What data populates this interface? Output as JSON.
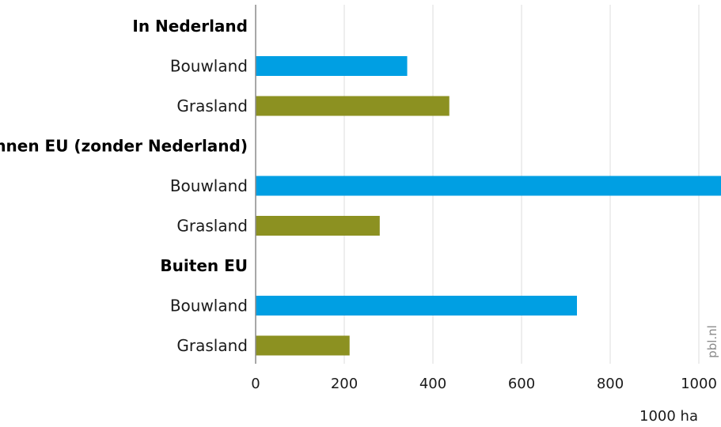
{
  "chart_data": {
    "type": "bar",
    "orientation": "horizontal",
    "x_unit_label": "1000 ha",
    "xlim": [
      0,
      1050
    ],
    "x_ticks": [
      "0",
      "200",
      "400",
      "600",
      "800",
      "1000"
    ],
    "grid": true,
    "source_label": "pbl.nl",
    "colors": {
      "Bouwland": "#009fe3",
      "Grasland": "#8c9121"
    },
    "groups": [
      {
        "name": "In Nederland",
        "bars": [
          {
            "label": "Bouwland",
            "value": 342
          },
          {
            "label": "Grasland",
            "value": 437
          }
        ]
      },
      {
        "name": "Binnen EU (zonder Nederland)",
        "bars": [
          {
            "label": "Bouwland",
            "value": 1050
          },
          {
            "label": "Grasland",
            "value": 280
          }
        ]
      },
      {
        "name": "Buiten EU",
        "bars": [
          {
            "label": "Bouwland",
            "value": 725
          },
          {
            "label": "Grasland",
            "value": 212
          }
        ]
      }
    ]
  }
}
